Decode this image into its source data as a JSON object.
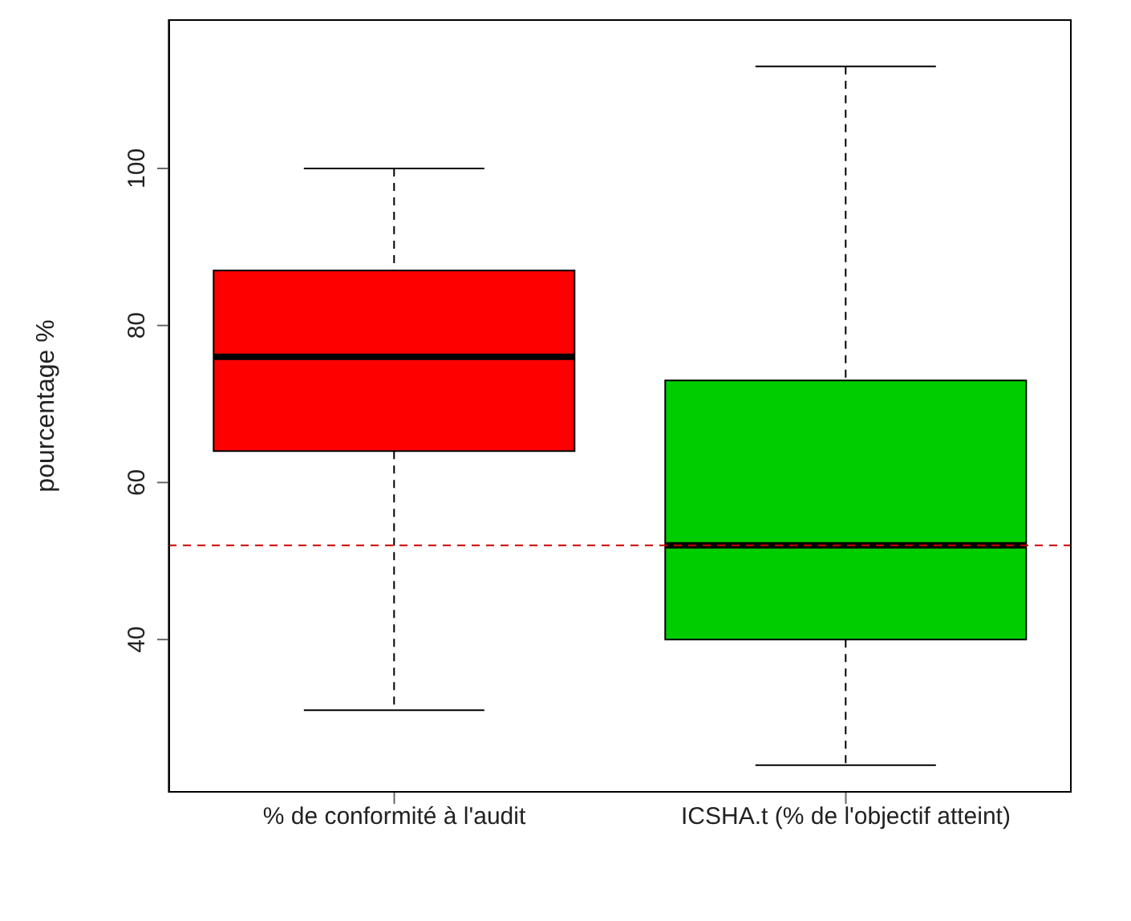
{
  "chart_data": {
    "type": "box",
    "ylabel": "pourcentage %",
    "categories": [
      "% de conformité à l'audit",
      "ICSHA.t (% de l'objectif atteint)"
    ],
    "boxes": [
      {
        "low": 31,
        "q1": 64,
        "median": 76,
        "q3": 87,
        "high": 100
      },
      {
        "low": 24,
        "q1": 40,
        "median": 52,
        "q3": 73,
        "high": 113
      }
    ],
    "colors": [
      "#ff0000",
      "#00cd00"
    ],
    "ylim": [
      20.5,
      119
    ],
    "yticks": [
      40,
      60,
      80,
      100
    ],
    "ref_lines": [
      {
        "axis": "y",
        "value": 52,
        "color": "#cc0000",
        "line_style": "dashed"
      }
    ]
  }
}
